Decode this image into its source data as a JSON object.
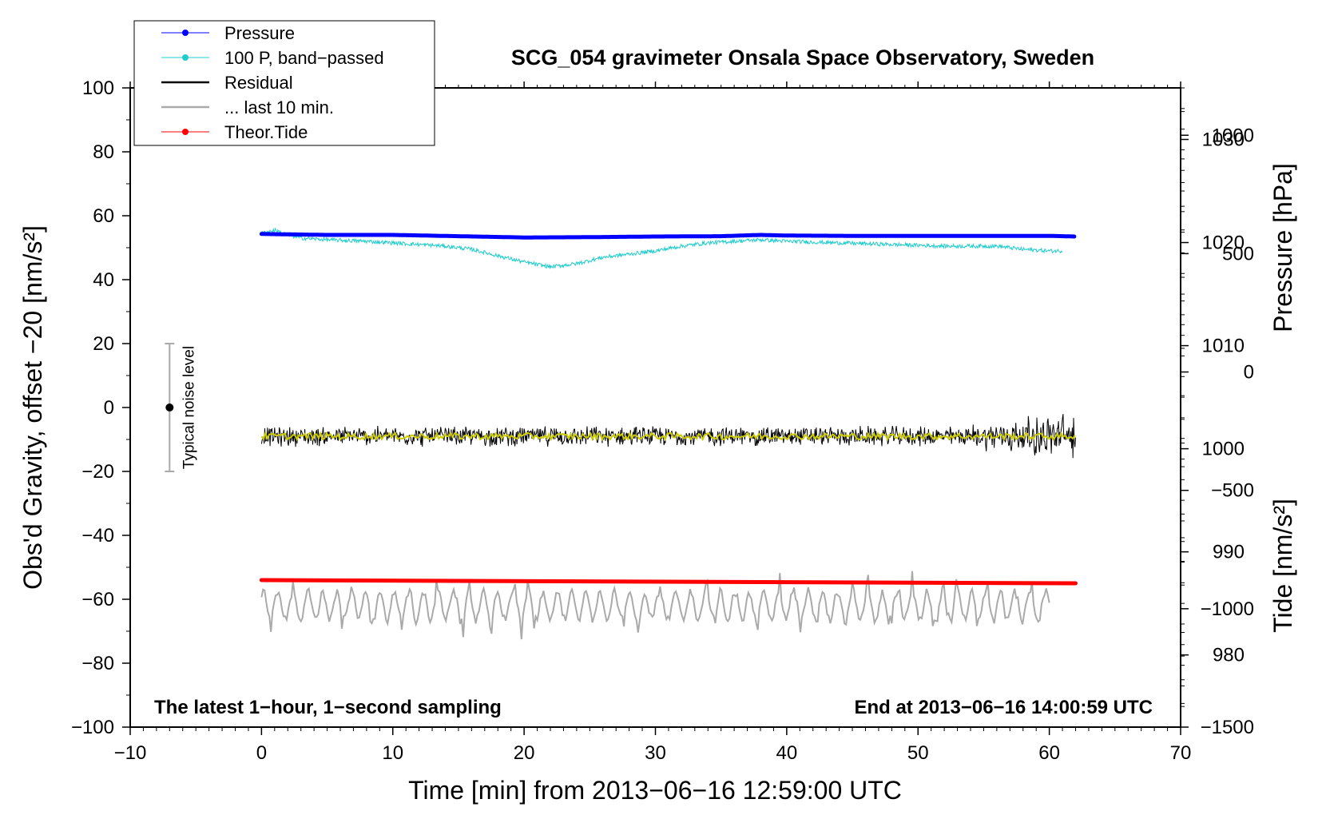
{
  "chart_data": {
    "type": "line",
    "title": "SCG_054 gravimeter Onsala Space Observatory, Sweden",
    "xlabel": "Time [min] from 2013−06−16 12:59:00 UTC",
    "ylabel_left": "Obs'd Gravity, offset −20 [nm/s²]",
    "ylabel_right_pressure": "Pressure [hPa]",
    "ylabel_right_tide": "Tide [nm/s²]",
    "xlim": [
      -10,
      70
    ],
    "ylim": [
      -100,
      100
    ],
    "x_ticks": [
      "−10",
      "0",
      "10",
      "20",
      "30",
      "40",
      "50",
      "60",
      "70"
    ],
    "x_tick_values": [
      -10,
      0,
      10,
      20,
      30,
      40,
      50,
      60,
      70
    ],
    "y_ticks": [
      "100",
      "80",
      "60",
      "40",
      "20",
      "0",
      "−20",
      "−40",
      "−60",
      "−80",
      "−100"
    ],
    "y_tick_values": [
      100,
      80,
      60,
      40,
      20,
      0,
      -20,
      -40,
      -60,
      -80,
      -100
    ],
    "pressure_axis": {
      "ticks": [
        "1030",
        "1020",
        "1010",
        "1000",
        "990",
        "980"
      ],
      "tick_values": [
        1030,
        1020,
        1010,
        1000,
        990,
        980
      ],
      "ylim": [
        973,
        1035
      ]
    },
    "tide_axis": {
      "ticks": [
        "1000",
        "500",
        "0",
        "−500",
        "−1000",
        "−1500"
      ],
      "tick_values": [
        1000,
        500,
        0,
        -500,
        -1000,
        -1500
      ],
      "ylim": [
        -1500,
        1200
      ]
    },
    "legend": [
      {
        "label": "Pressure",
        "color": "#0000ff",
        "marker": "dot"
      },
      {
        "label": "100 P, band−passed",
        "color": "#22cccc",
        "marker": "dot"
      },
      {
        "label": "Residual",
        "color": "#000000",
        "marker": "line"
      },
      {
        "label": "... last 10 min.",
        "color": "#aaaaaa",
        "marker": "line"
      },
      {
        "label": "Theor.Tide",
        "color": "#ff0000",
        "marker": "dot"
      }
    ],
    "series": [
      {
        "name": "Pressure",
        "color": "#0000ff",
        "x": [
          0,
          5,
          10,
          15,
          20,
          25,
          30,
          35,
          38,
          40,
          45,
          50,
          55,
          60,
          62
        ],
        "values": [
          54.3,
          54.0,
          54.0,
          53.6,
          53.2,
          53.3,
          53.5,
          53.6,
          54.0,
          53.8,
          53.7,
          53.7,
          53.7,
          53.7,
          53.5
        ]
      },
      {
        "name": "100 P, band−passed",
        "color": "#22cccc",
        "x": [
          0,
          1,
          2,
          3,
          5,
          8,
          10,
          12,
          14,
          16,
          18,
          20,
          22,
          24,
          26,
          28,
          30,
          32,
          34,
          36,
          38,
          40,
          44,
          48,
          52,
          56,
          58,
          60,
          61
        ],
        "values": [
          54.5,
          55.5,
          54.0,
          53.0,
          52.5,
          52.0,
          51.5,
          51.0,
          50.5,
          49.5,
          47.5,
          45.5,
          44.0,
          45.0,
          47.0,
          48.0,
          49.0,
          50.5,
          51.5,
          52.0,
          52.5,
          52.0,
          51.5,
          51.0,
          50.5,
          50.5,
          49.5,
          49.0,
          49.0
        ]
      },
      {
        "name": "Residual",
        "color": "#000000",
        "x": [
          0,
          53,
          62
        ],
        "values": [
          -9.0,
          -9.0,
          -9.0
        ],
        "noise_amplitude": [
          3.5,
          3.5,
          9.0
        ]
      },
      {
        "name": "Residual smoothed",
        "color": "#cccc00",
        "x": [
          0,
          62
        ],
        "values": [
          -9.0,
          -9.0
        ]
      },
      {
        "name": "... last 10 min.",
        "color": "#aaaaaa",
        "x": [
          0,
          60
        ],
        "values": [
          -62.0,
          -62.0
        ],
        "range": [
          -78,
          -47
        ]
      },
      {
        "name": "Theor.Tide",
        "color": "#ff0000",
        "x": [
          0,
          62
        ],
        "values": [
          -54.0,
          -55.0
        ]
      }
    ],
    "noise_indicator": {
      "label": "Typical noise level",
      "x": -7,
      "center": 0,
      "low": -20,
      "high": 20
    },
    "annotations": {
      "bottom_left": "The latest 1−hour, 1−second sampling",
      "bottom_right": "End at 2013−06−16 14:00:59 UTC"
    }
  }
}
